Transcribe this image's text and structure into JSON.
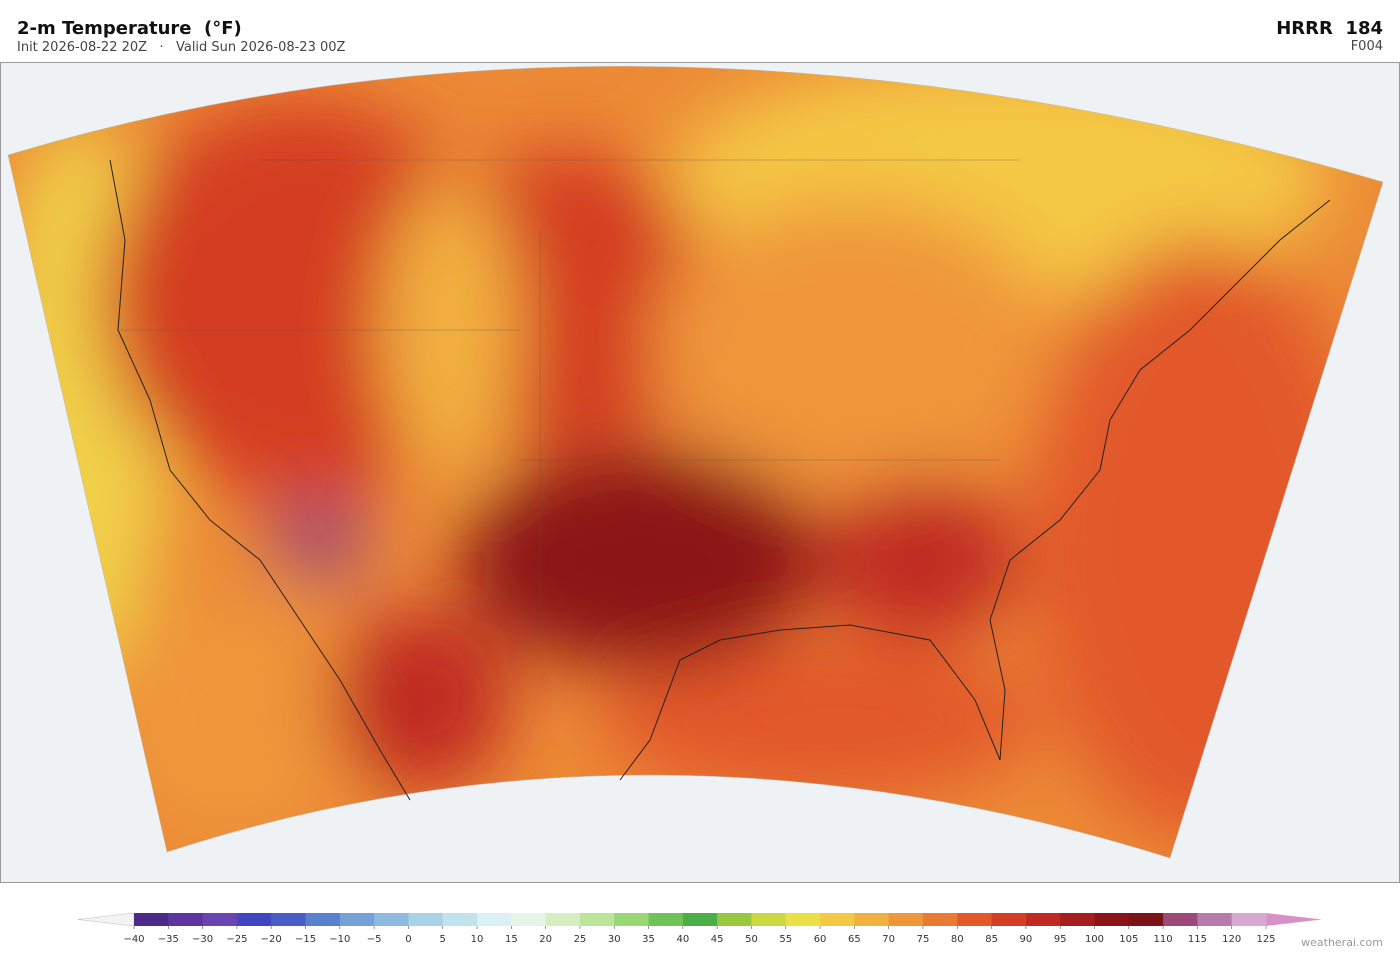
{
  "header": {
    "title": "2-m Temperature  (°F)",
    "subtitle": "Init 2026-08-22 20Z   ·   Valid Sun 2026-08-23 00Z",
    "model": "HRRR  184",
    "forecast_hour": "F004"
  },
  "colorbar": {
    "ticks": [
      {
        "value": -40,
        "label": "−40"
      },
      {
        "value": -35,
        "label": "−35"
      },
      {
        "value": -30,
        "label": "−30"
      },
      {
        "value": -25,
        "label": "−25"
      },
      {
        "value": -20,
        "label": "−20"
      },
      {
        "value": -15,
        "label": "−15"
      },
      {
        "value": -10,
        "label": "−10"
      },
      {
        "value": -5,
        "label": "−5"
      },
      0,
      5,
      10,
      15,
      20,
      25,
      30,
      35,
      40,
      45,
      50,
      55,
      60,
      65,
      70,
      75,
      80,
      85,
      90,
      95,
      100,
      105,
      110,
      115,
      120,
      125
    ],
    "colors": [
      "#4b2a8a",
      "#5e35a0",
      "#6a44b0",
      "#4046c0",
      "#4a5cc8",
      "#5a80d0",
      "#74a2d8",
      "#8ebadf",
      "#a8d2e8",
      "#c2e2ee",
      "#daf0f2",
      "#e6f6e6",
      "#d6eec4",
      "#bce49a",
      "#98d676",
      "#72c25a",
      "#4aaf46",
      "#98c840",
      "#cad844",
      "#ece048",
      "#f4c844",
      "#f2b040",
      "#ef963a",
      "#e97a34",
      "#e2582a",
      "#d43e24",
      "#c02a22",
      "#a41e20",
      "#8c1418",
      "#7a1418",
      "#9c4a7a",
      "#b87aaa",
      "#d8a8d0"
    ],
    "under_color": "#f4f4f4",
    "over_color": "#d890c8"
  },
  "credit": "weatherai.com"
}
